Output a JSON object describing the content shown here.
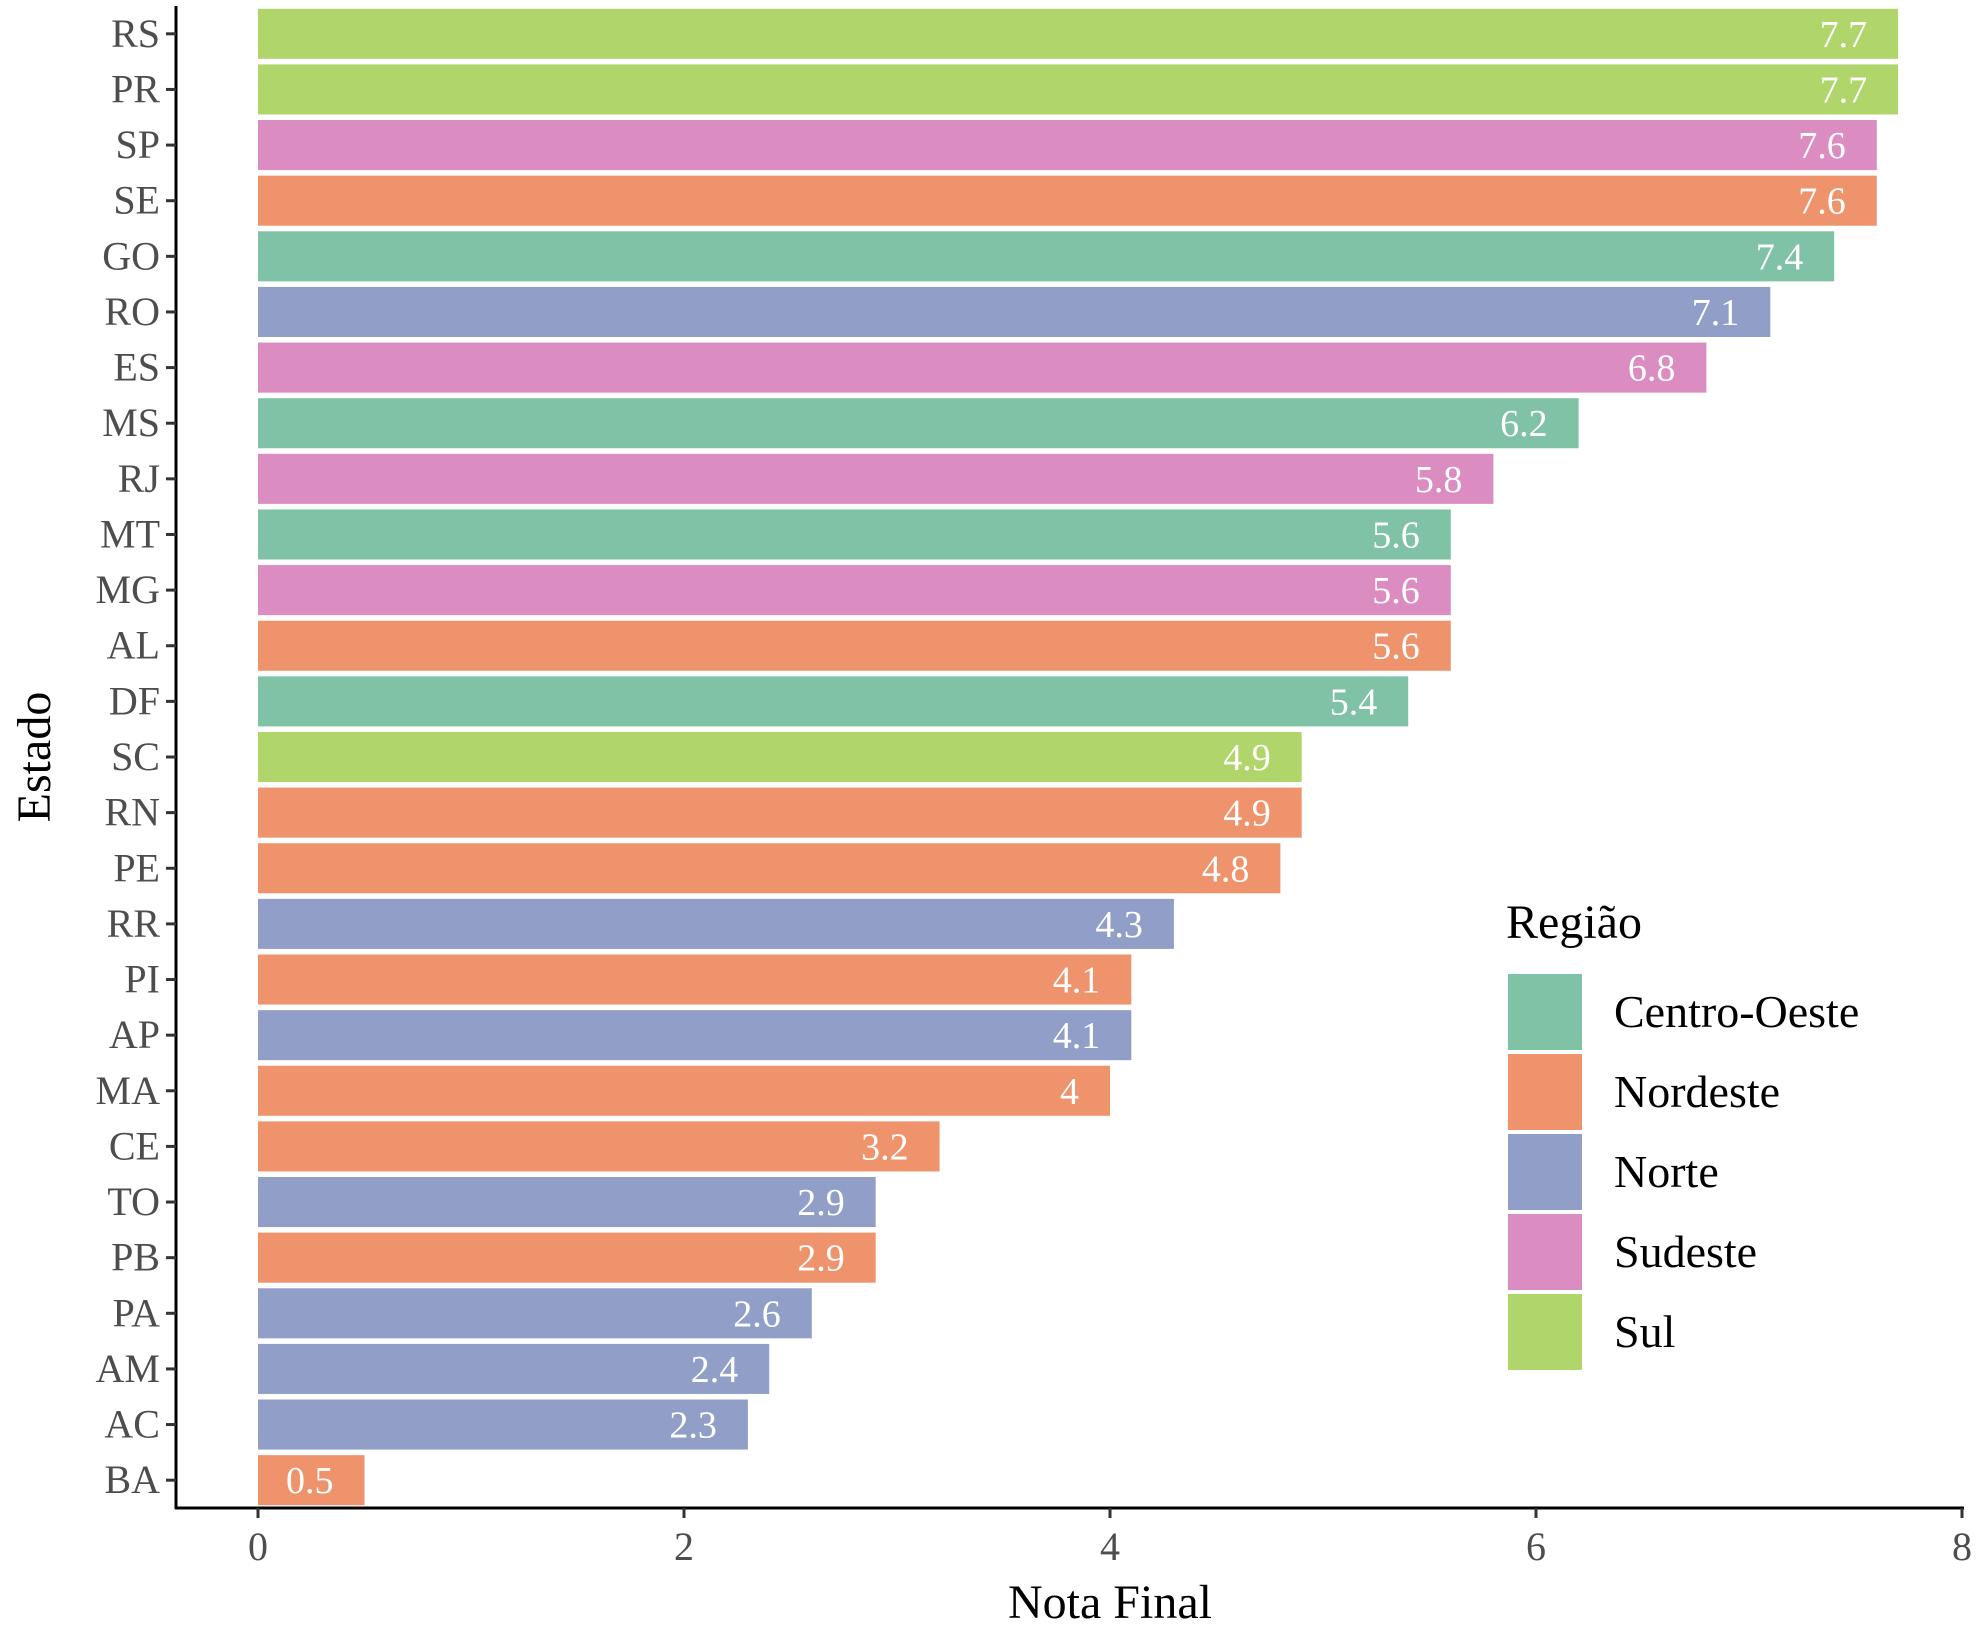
{
  "chart_data": {
    "type": "bar",
    "orientation": "horizontal",
    "xlabel": "Nota Final",
    "ylabel": "Estado",
    "xlim": [
      0,
      8
    ],
    "x_ticks": [
      "0",
      "2",
      "4",
      "6",
      "8"
    ],
    "grid": false,
    "categories": [
      "RS",
      "PR",
      "SP",
      "SE",
      "GO",
      "RO",
      "ES",
      "MS",
      "RJ",
      "MT",
      "MG",
      "AL",
      "DF",
      "SC",
      "RN",
      "PE",
      "RR",
      "PI",
      "AP",
      "MA",
      "CE",
      "TO",
      "PB",
      "PA",
      "AM",
      "AC",
      "BA"
    ],
    "values": [
      7.7,
      7.7,
      7.6,
      7.6,
      7.4,
      7.1,
      6.8,
      6.2,
      5.8,
      5.6,
      5.6,
      5.6,
      5.4,
      4.9,
      4.9,
      4.8,
      4.3,
      4.1,
      4.1,
      4,
      3.2,
      2.9,
      2.9,
      2.6,
      2.4,
      2.3,
      0.5
    ],
    "value_labels": [
      "7.7",
      "7.7",
      "7.6",
      "7.6",
      "7.4",
      "7.1",
      "6.8",
      "6.2",
      "5.8",
      "5.6",
      "5.6",
      "5.6",
      "5.4",
      "4.9",
      "4.9",
      "4.8",
      "4.3",
      "4.1",
      "4.1",
      "4",
      "3.2",
      "2.9",
      "2.9",
      "2.6",
      "2.4",
      "2.3",
      "0.5"
    ],
    "regions": [
      "Sul",
      "Sul",
      "Sudeste",
      "Nordeste",
      "Centro-Oeste",
      "Norte",
      "Sudeste",
      "Centro-Oeste",
      "Sudeste",
      "Centro-Oeste",
      "Sudeste",
      "Nordeste",
      "Centro-Oeste",
      "Sul",
      "Nordeste",
      "Nordeste",
      "Norte",
      "Nordeste",
      "Norte",
      "Nordeste",
      "Nordeste",
      "Norte",
      "Nordeste",
      "Norte",
      "Norte",
      "Norte",
      "Nordeste"
    ],
    "legend": {
      "title": "Região",
      "placement": "right",
      "entries": [
        {
          "name": "Centro-Oeste",
          "color": "#7fc2a5"
        },
        {
          "name": "Nordeste",
          "color": "#ee936c"
        },
        {
          "name": "Norte",
          "color": "#919fc8"
        },
        {
          "name": "Sudeste",
          "color": "#db8cc0"
        },
        {
          "name": "Sul",
          "color": "#b0d56b"
        }
      ]
    }
  }
}
